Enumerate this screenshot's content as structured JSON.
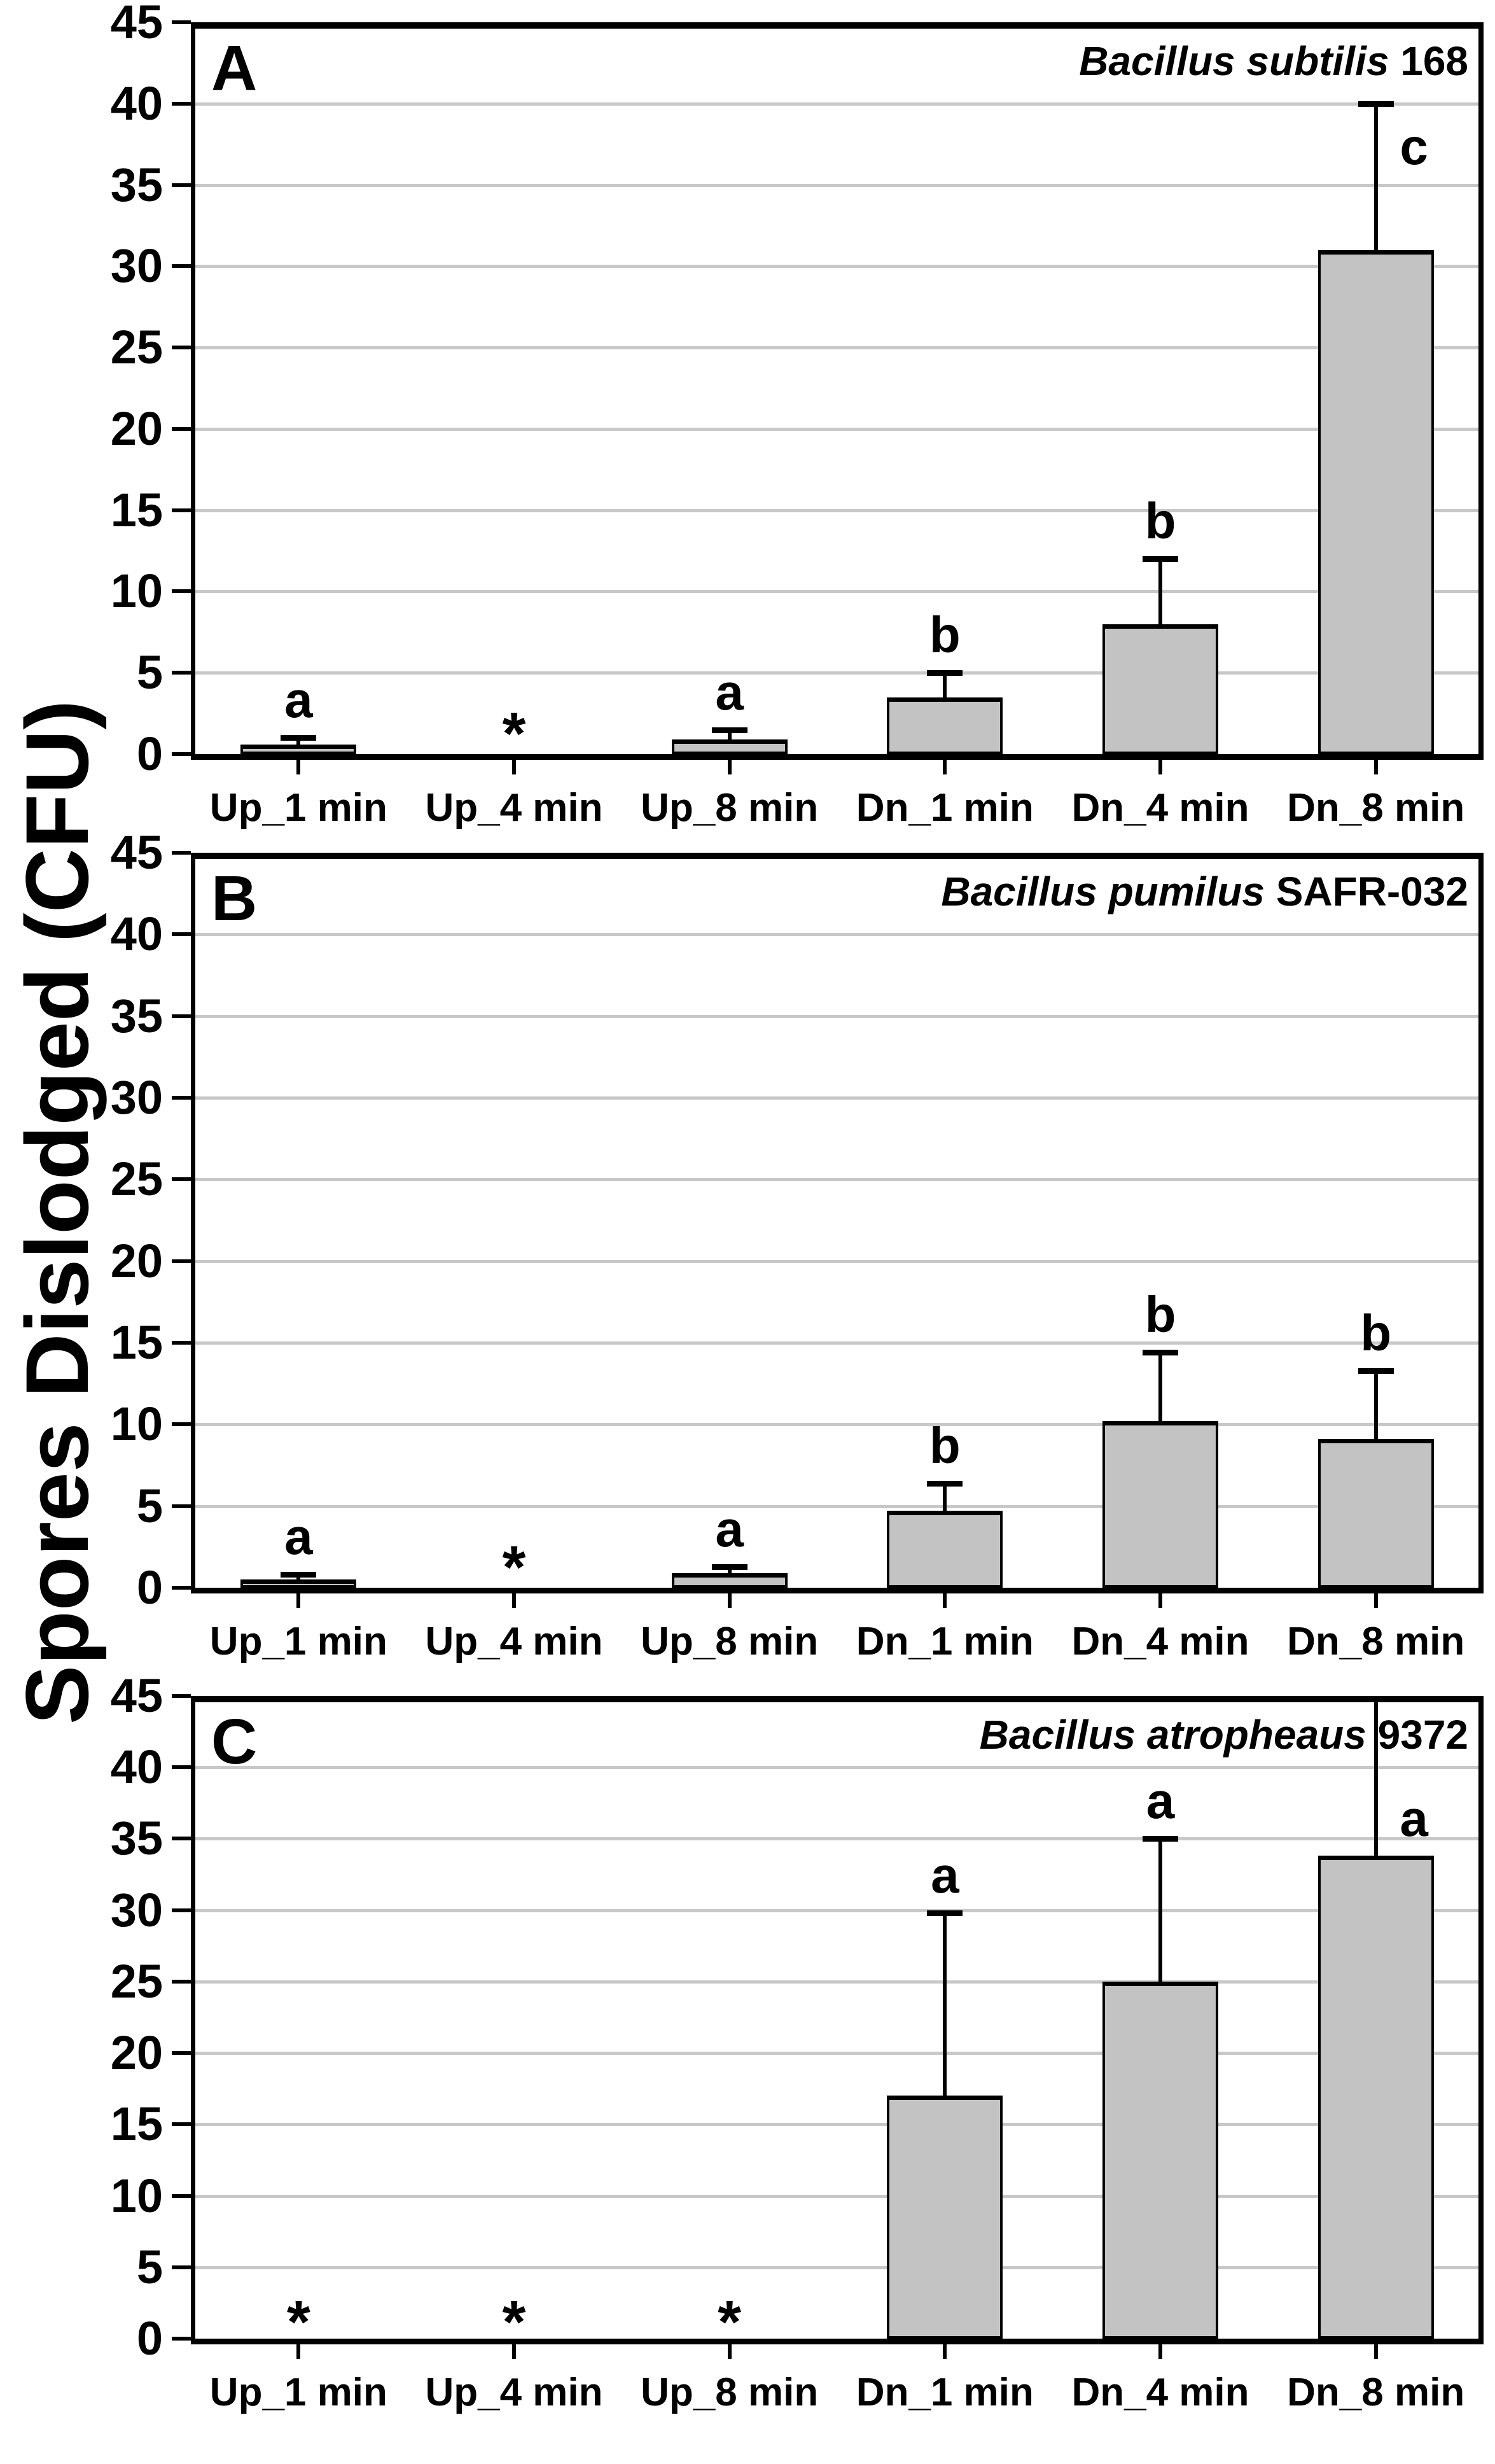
{
  "figure": {
    "ylabel": "Spores Dislodged (CFU)"
  },
  "chart_data": {
    "type": "bar",
    "categories": [
      "Up_1 min",
      "Up_4 min",
      "Up_8 min",
      "Dn_1 min",
      "Dn_4 min",
      "Dn_8 min"
    ],
    "xlabel": "",
    "ylabel": "Spores Dislodged (CFU)",
    "y_axis": {
      "min": 0,
      "max": 45,
      "step": 5,
      "tick_labels": [
        "0",
        "5",
        "10",
        "15",
        "20",
        "25",
        "30",
        "35",
        "40",
        "45"
      ],
      "gridlines": true
    },
    "legend": "none",
    "bar_color": "#c3c3c3",
    "gridline_color": "#c8c8c8",
    "no_data_marker": "*",
    "panels": [
      {
        "panel_letter": "A",
        "title_italic": "Bacillus subtilis",
        "title_suffix": " 168",
        "values": [
          0.6,
          0,
          0.9,
          3.5,
          8,
          31
        ],
        "err_top": [
          1.0,
          null,
          1.5,
          5,
          12,
          40
        ],
        "err_clipped": [
          false,
          false,
          false,
          false,
          false,
          false
        ],
        "sig_labels": [
          "a",
          "*",
          "a",
          "b",
          "b",
          "c"
        ]
      },
      {
        "panel_letter": "B",
        "title_italic": "Bacillus pumilus",
        "title_suffix": " SAFR-032",
        "values": [
          0.5,
          0,
          0.9,
          4.7,
          10.2,
          9.1
        ],
        "err_top": [
          0.8,
          null,
          1.3,
          6.4,
          14.4,
          13.3
        ],
        "err_clipped": [
          false,
          false,
          false,
          false,
          false,
          false
        ],
        "sig_labels": [
          "a",
          "*",
          "a",
          "b",
          "b",
          "b"
        ]
      },
      {
        "panel_letter": "C",
        "title_italic": "Bacillus atropheaus",
        "title_suffix": " 9372",
        "values": [
          0,
          0,
          0,
          17,
          25,
          33.8
        ],
        "err_top": [
          null,
          null,
          null,
          29.8,
          35,
          45
        ],
        "err_clipped": [
          false,
          false,
          false,
          false,
          false,
          true
        ],
        "sig_labels": [
          "*",
          "*",
          "*",
          "a",
          "a",
          "a"
        ]
      }
    ]
  }
}
